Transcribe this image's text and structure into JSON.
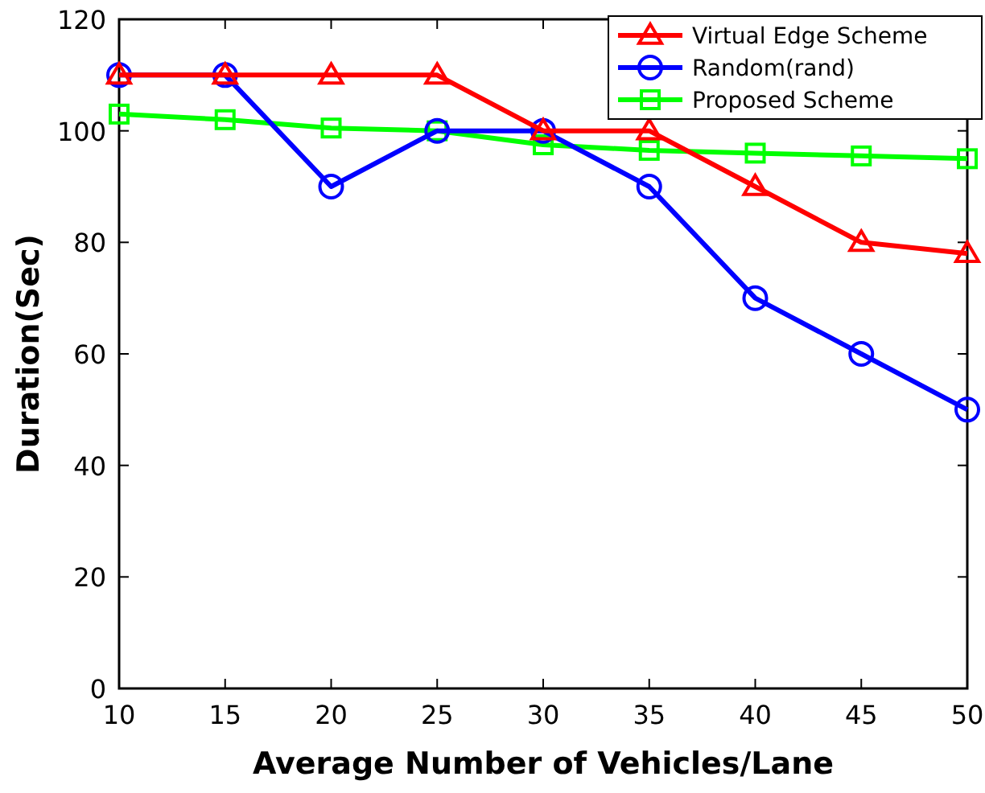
{
  "chart_data": {
    "type": "line",
    "xlabel": "Average Number of Vehicles/Lane",
    "ylabel": "Duration(Sec)",
    "x": [
      10,
      15,
      20,
      25,
      30,
      35,
      40,
      45,
      50
    ],
    "series": [
      {
        "name": "Virtual Edge Scheme",
        "color": "#ff0000",
        "marker": "triangle",
        "values": [
          110,
          110,
          110,
          110,
          100,
          100,
          90,
          80,
          78
        ]
      },
      {
        "name": "Random(rand)",
        "color": "#0000ff",
        "marker": "circle",
        "values": [
          110,
          110,
          90,
          100,
          100,
          90,
          70,
          60,
          50
        ]
      },
      {
        "name": "Proposed Scheme",
        "color": "#00ff00",
        "marker": "square",
        "values": [
          103,
          102,
          100.5,
          100,
          97.5,
          96.5,
          96,
          95.5,
          95
        ]
      }
    ],
    "xlim": [
      10,
      50
    ],
    "xticks": [
      10,
      15,
      20,
      25,
      30,
      35,
      40,
      45,
      50
    ],
    "ylim": [
      0,
      120
    ],
    "yticks": [
      0,
      20,
      40,
      60,
      80,
      100,
      120
    ],
    "legend": "top right",
    "grid": false,
    "line_style": "solid"
  }
}
